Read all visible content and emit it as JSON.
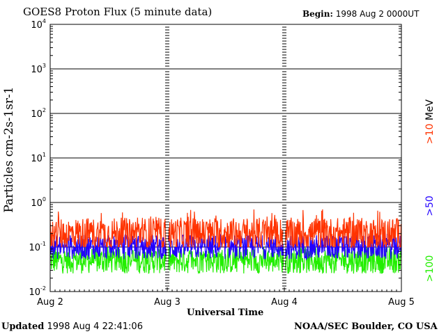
{
  "header": {
    "title": "GOES8 Proton Flux (5 minute data)",
    "begin_label": "Begin:",
    "begin_value": "1998 Aug 2 0000UT"
  },
  "footer": {
    "updated_label": "Updated",
    "updated_value": "1998 Aug  4 22:41:06",
    "credit": "NOAA/SEC Boulder, CO USA"
  },
  "right_labels": {
    "energy_10": ">10",
    "unit": "MeV",
    "energy_50": ">50",
    "energy_100": ">100"
  },
  "colors": {
    "gt10": "#ff3300",
    "gt50": "#2200ff",
    "gt100": "#22ee00"
  },
  "chart_data": {
    "type": "line",
    "title": "GOES8 Proton Flux (5 minute data)",
    "xlabel": "Universal Time",
    "ylabel": "Particles cm-2s-1sr-1",
    "yscale": "log",
    "ylim": [
      0.01,
      10000
    ],
    "y_ticks": [
      {
        "value": 0.01,
        "base": "10",
        "exp": "-2"
      },
      {
        "value": 0.1,
        "base": "10",
        "exp": "-1"
      },
      {
        "value": 1,
        "base": "10",
        "exp": "0"
      },
      {
        "value": 10,
        "base": "10",
        "exp": "1"
      },
      {
        "value": 100,
        "base": "10",
        "exp": "2"
      },
      {
        "value": 1000,
        "base": "10",
        "exp": "3"
      },
      {
        "value": 10000,
        "base": "10",
        "exp": "4"
      }
    ],
    "x_ticks": [
      "Aug 2",
      "Aug 3",
      "Aug 4",
      "Aug 5"
    ],
    "xlim_days": [
      0,
      3
    ],
    "grid": true,
    "series": [
      {
        "name": ">10 MeV",
        "color": "#ff3300",
        "typical": 0.2,
        "min": 0.1,
        "max": 0.7
      },
      {
        "name": ">50 MeV",
        "color": "#2200ff",
        "typical": 0.1,
        "min": 0.045,
        "max": 0.2
      },
      {
        "name": ">100 MeV",
        "color": "#22ee00",
        "typical": 0.05,
        "min": 0.02,
        "max": 0.1
      }
    ]
  }
}
